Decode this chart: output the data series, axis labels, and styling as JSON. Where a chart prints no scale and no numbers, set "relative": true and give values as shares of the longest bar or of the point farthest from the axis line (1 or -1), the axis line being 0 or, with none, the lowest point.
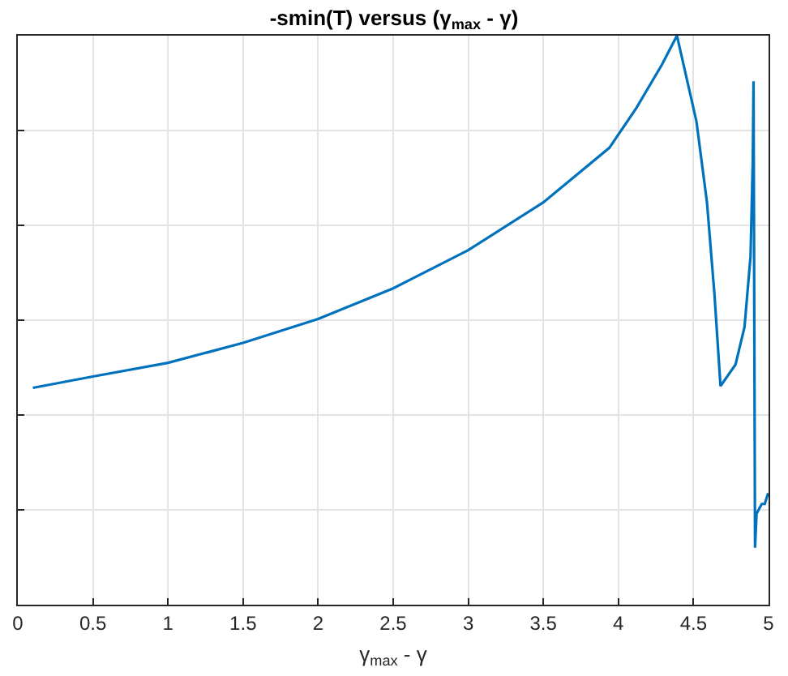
{
  "chart_data": {
    "type": "line",
    "title": "-smin(T) versus (γ$_{max}$ - γ)",
    "xlabel": "γ$_{max}$ - γ",
    "relative": true,
    "grid": true,
    "tick_labels": "x",
    "marker": "none",
    "line_style": "solid",
    "xlim": [
      0,
      5
    ],
    "xticks": [
      0,
      0.5,
      1,
      1.5,
      2,
      2.5,
      3,
      3.5,
      4,
      4.5,
      5
    ],
    "x": [
      0.1,
      0.5,
      1.0,
      1.5,
      2.0,
      2.5,
      3.0,
      3.5,
      3.94,
      4.12,
      4.29,
      4.39,
      4.52,
      4.59,
      4.64,
      4.68,
      4.78,
      4.84,
      4.88,
      4.895,
      4.9,
      4.91,
      4.92,
      4.955,
      4.975,
      4.997
    ],
    "series": [
      {
        "color": "#0072bd",
        "values": [
          0.381,
          0.401,
          0.425,
          0.46,
          0.502,
          0.556,
          0.623,
          0.707,
          0.803,
          0.873,
          0.949,
          1.0,
          0.849,
          0.707,
          0.545,
          0.384,
          0.422,
          0.488,
          0.612,
          0.78,
          0.92,
          0.1,
          0.16,
          0.177,
          0.177,
          0.196
        ]
      }
    ]
  }
}
